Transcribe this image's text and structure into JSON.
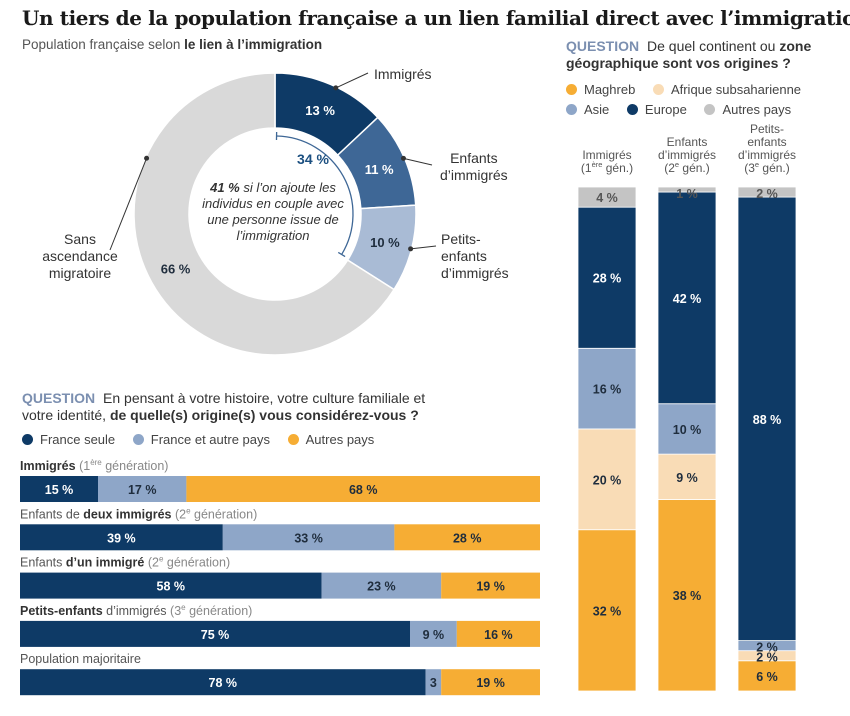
{
  "title": "Un tiers de la population française a un lien familial direct avec l’immigration",
  "donut": {
    "subtitle_prefix": "Population française selon",
    "subtitle_bold": "le lien à l’immigration",
    "segments": [
      {
        "label": "Immigrés",
        "value": 13,
        "value_label": "13 %",
        "color": "#0e3a66"
      },
      {
        "label": "Enfants d’immigrés",
        "value": 11,
        "value_label": "11 %",
        "color": "#3e6796"
      },
      {
        "label": "Petits-enfants d’immigrés",
        "value": 10,
        "value_label": "10 %",
        "color": "#a9bbd5"
      },
      {
        "label": "Sans ascendance migratoire",
        "value": 66,
        "value_label": "66 %",
        "color": "#d9d9d9"
      }
    ],
    "bracket_value": "34 %",
    "note_bold": "41 %",
    "note_text": "si l’on ajoute les individus en couple avec une personne issue de l’immigration"
  },
  "question1": {
    "tag": "QUESTION",
    "text_a": "En pensant à votre histoire, votre culture familiale et votre identité,",
    "text_b": "de quelle(s) origine(s) vous considérez-vous ?",
    "legend": [
      {
        "label": "France seule",
        "color": "#0e3a66"
      },
      {
        "label": "France et autre pays",
        "color": "#8ea6c8"
      },
      {
        "label": "Autres pays",
        "color": "#f6ad34"
      }
    ]
  },
  "question2": {
    "tag": "QUESTION",
    "text_a": "De quel continent ou",
    "text_b": "zone géographique sont vos origines ?",
    "legend": [
      {
        "label": "Maghreb",
        "color": "#f6ad34"
      },
      {
        "label": "Afrique subsaharienne",
        "color": "#f9dcb6"
      },
      {
        "label": "Asie",
        "color": "#8ea6c8"
      },
      {
        "label": "Europe",
        "color": "#0e3a66"
      },
      {
        "label": "Autres pays",
        "color": "#c4c4c4"
      }
    ]
  },
  "chart_data": [
    {
      "type": "pie",
      "title": "Population française selon le lien à l’immigration",
      "categories": [
        "Immigrés",
        "Enfants d’immigrés",
        "Petits-enfants d’immigrés",
        "Sans ascendance migratoire"
      ],
      "values": [
        13,
        11,
        10,
        66
      ],
      "annotations": [
        "34 %",
        "41 % si l’on ajoute les individus en couple avec une personne issue de l’immigration"
      ]
    },
    {
      "type": "bar",
      "orientation": "horizontal",
      "stacked": true,
      "categories": [
        {
          "pre": "",
          "bold": "Immigrés",
          "post": "",
          "gen_pre": "(1",
          "gen_sup": "ère",
          "gen_post": " génération)"
        },
        {
          "pre": "Enfants de ",
          "bold": "deux immigrés",
          "post": "",
          "gen_pre": "(2",
          "gen_sup": "e",
          "gen_post": " génération)"
        },
        {
          "pre": "Enfants ",
          "bold": "d’un immigré",
          "post": "",
          "gen_pre": "(2",
          "gen_sup": "e",
          "gen_post": " génération)"
        },
        {
          "pre": "",
          "bold": "Petits-enfants",
          "post": " d’immigrés",
          "gen_pre": "(3",
          "gen_sup": "e",
          "gen_post": " génération)"
        },
        {
          "pre": "Population majoritaire",
          "bold": "",
          "post": "",
          "gen_pre": "",
          "gen_sup": "",
          "gen_post": ""
        }
      ],
      "series": [
        {
          "name": "France seule",
          "values": [
            15,
            39,
            58,
            75,
            78
          ],
          "labels": [
            "15 %",
            "39 %",
            "58 %",
            "75 %",
            "78 %"
          ]
        },
        {
          "name": "France et autre pays",
          "values": [
            17,
            33,
            23,
            9,
            3
          ],
          "labels": [
            "17 %",
            "33 %",
            "23 %",
            "9 %",
            "3"
          ]
        },
        {
          "name": "Autres pays",
          "values": [
            68,
            28,
            19,
            16,
            19
          ],
          "labels": [
            "68 %",
            "28 %",
            "19 %",
            "16 %",
            "19 %"
          ]
        }
      ]
    },
    {
      "type": "bar",
      "orientation": "vertical",
      "stacked": true,
      "categories": [
        {
          "lines": [
            "Immigrés"
          ],
          "gen_pre": "(1",
          "gen_sup": "ère",
          "gen_post": " gén.)"
        },
        {
          "lines": [
            "Enfants",
            "d’immigrés"
          ],
          "gen_pre": "(2",
          "gen_sup": "e",
          "gen_post": " gén.)"
        },
        {
          "lines": [
            "Petits-",
            "enfants",
            "d’immigrés"
          ],
          "gen_pre": "(3",
          "gen_sup": "e",
          "gen_post": " gén.)"
        }
      ],
      "series": [
        {
          "name": "Maghreb",
          "values": [
            32,
            38,
            6
          ],
          "labels": [
            "32 %",
            "38 %",
            "6 %"
          ]
        },
        {
          "name": "Afrique subsaharienne",
          "values": [
            20,
            9,
            2
          ],
          "labels": [
            "20 %",
            "9 %",
            "2 %"
          ]
        },
        {
          "name": "Asie",
          "values": [
            16,
            10,
            2
          ],
          "labels": [
            "16 %",
            "10 %",
            "2 %"
          ]
        },
        {
          "name": "Europe",
          "values": [
            28,
            42,
            88
          ],
          "labels": [
            "28 %",
            "42 %",
            "88 %"
          ]
        },
        {
          "name": "Autres pays",
          "values": [
            4,
            1,
            2
          ],
          "labels": [
            "4 %",
            "1 %",
            "2 %"
          ]
        }
      ]
    }
  ]
}
